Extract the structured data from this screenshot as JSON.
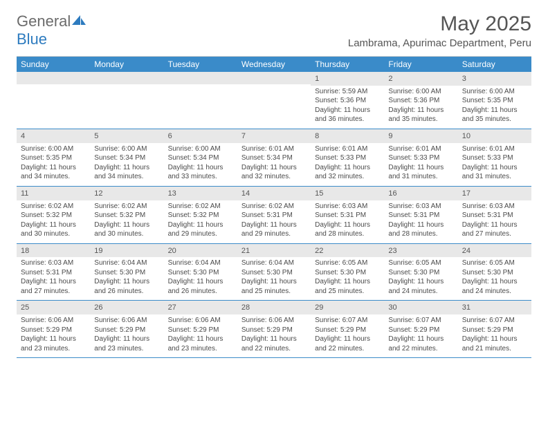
{
  "logo": {
    "text1": "General",
    "text2": "Blue"
  },
  "title": "May 2025",
  "location": "Lambrama, Apurimac Department, Peru",
  "colors": {
    "header_bg": "#3a8bc9",
    "header_text": "#ffffff",
    "daynum_bg": "#e8e8e8",
    "week_border": "#3a8bc9",
    "text": "#4a4a4a",
    "logo_gray": "#6b6b6b",
    "logo_blue": "#2d7bbf",
    "title_color": "#555555",
    "background": "#ffffff"
  },
  "fonts": {
    "family": "Arial, Helvetica, sans-serif",
    "title_size_pt": 22,
    "location_size_pt": 11,
    "dayheader_size_pt": 9,
    "cell_size_pt": 7.5
  },
  "day_labels": [
    "Sunday",
    "Monday",
    "Tuesday",
    "Wednesday",
    "Thursday",
    "Friday",
    "Saturday"
  ],
  "weeks": [
    [
      {
        "num": "",
        "sunrise": "",
        "sunset": "",
        "daylight": ""
      },
      {
        "num": "",
        "sunrise": "",
        "sunset": "",
        "daylight": ""
      },
      {
        "num": "",
        "sunrise": "",
        "sunset": "",
        "daylight": ""
      },
      {
        "num": "",
        "sunrise": "",
        "sunset": "",
        "daylight": ""
      },
      {
        "num": "1",
        "sunrise": "Sunrise: 5:59 AM",
        "sunset": "Sunset: 5:36 PM",
        "daylight": "Daylight: 11 hours and 36 minutes."
      },
      {
        "num": "2",
        "sunrise": "Sunrise: 6:00 AM",
        "sunset": "Sunset: 5:36 PM",
        "daylight": "Daylight: 11 hours and 35 minutes."
      },
      {
        "num": "3",
        "sunrise": "Sunrise: 6:00 AM",
        "sunset": "Sunset: 5:35 PM",
        "daylight": "Daylight: 11 hours and 35 minutes."
      }
    ],
    [
      {
        "num": "4",
        "sunrise": "Sunrise: 6:00 AM",
        "sunset": "Sunset: 5:35 PM",
        "daylight": "Daylight: 11 hours and 34 minutes."
      },
      {
        "num": "5",
        "sunrise": "Sunrise: 6:00 AM",
        "sunset": "Sunset: 5:34 PM",
        "daylight": "Daylight: 11 hours and 34 minutes."
      },
      {
        "num": "6",
        "sunrise": "Sunrise: 6:00 AM",
        "sunset": "Sunset: 5:34 PM",
        "daylight": "Daylight: 11 hours and 33 minutes."
      },
      {
        "num": "7",
        "sunrise": "Sunrise: 6:01 AM",
        "sunset": "Sunset: 5:34 PM",
        "daylight": "Daylight: 11 hours and 32 minutes."
      },
      {
        "num": "8",
        "sunrise": "Sunrise: 6:01 AM",
        "sunset": "Sunset: 5:33 PM",
        "daylight": "Daylight: 11 hours and 32 minutes."
      },
      {
        "num": "9",
        "sunrise": "Sunrise: 6:01 AM",
        "sunset": "Sunset: 5:33 PM",
        "daylight": "Daylight: 11 hours and 31 minutes."
      },
      {
        "num": "10",
        "sunrise": "Sunrise: 6:01 AM",
        "sunset": "Sunset: 5:33 PM",
        "daylight": "Daylight: 11 hours and 31 minutes."
      }
    ],
    [
      {
        "num": "11",
        "sunrise": "Sunrise: 6:02 AM",
        "sunset": "Sunset: 5:32 PM",
        "daylight": "Daylight: 11 hours and 30 minutes."
      },
      {
        "num": "12",
        "sunrise": "Sunrise: 6:02 AM",
        "sunset": "Sunset: 5:32 PM",
        "daylight": "Daylight: 11 hours and 30 minutes."
      },
      {
        "num": "13",
        "sunrise": "Sunrise: 6:02 AM",
        "sunset": "Sunset: 5:32 PM",
        "daylight": "Daylight: 11 hours and 29 minutes."
      },
      {
        "num": "14",
        "sunrise": "Sunrise: 6:02 AM",
        "sunset": "Sunset: 5:31 PM",
        "daylight": "Daylight: 11 hours and 29 minutes."
      },
      {
        "num": "15",
        "sunrise": "Sunrise: 6:03 AM",
        "sunset": "Sunset: 5:31 PM",
        "daylight": "Daylight: 11 hours and 28 minutes."
      },
      {
        "num": "16",
        "sunrise": "Sunrise: 6:03 AM",
        "sunset": "Sunset: 5:31 PM",
        "daylight": "Daylight: 11 hours and 28 minutes."
      },
      {
        "num": "17",
        "sunrise": "Sunrise: 6:03 AM",
        "sunset": "Sunset: 5:31 PM",
        "daylight": "Daylight: 11 hours and 27 minutes."
      }
    ],
    [
      {
        "num": "18",
        "sunrise": "Sunrise: 6:03 AM",
        "sunset": "Sunset: 5:31 PM",
        "daylight": "Daylight: 11 hours and 27 minutes."
      },
      {
        "num": "19",
        "sunrise": "Sunrise: 6:04 AM",
        "sunset": "Sunset: 5:30 PM",
        "daylight": "Daylight: 11 hours and 26 minutes."
      },
      {
        "num": "20",
        "sunrise": "Sunrise: 6:04 AM",
        "sunset": "Sunset: 5:30 PM",
        "daylight": "Daylight: 11 hours and 26 minutes."
      },
      {
        "num": "21",
        "sunrise": "Sunrise: 6:04 AM",
        "sunset": "Sunset: 5:30 PM",
        "daylight": "Daylight: 11 hours and 25 minutes."
      },
      {
        "num": "22",
        "sunrise": "Sunrise: 6:05 AM",
        "sunset": "Sunset: 5:30 PM",
        "daylight": "Daylight: 11 hours and 25 minutes."
      },
      {
        "num": "23",
        "sunrise": "Sunrise: 6:05 AM",
        "sunset": "Sunset: 5:30 PM",
        "daylight": "Daylight: 11 hours and 24 minutes."
      },
      {
        "num": "24",
        "sunrise": "Sunrise: 6:05 AM",
        "sunset": "Sunset: 5:30 PM",
        "daylight": "Daylight: 11 hours and 24 minutes."
      }
    ],
    [
      {
        "num": "25",
        "sunrise": "Sunrise: 6:06 AM",
        "sunset": "Sunset: 5:29 PM",
        "daylight": "Daylight: 11 hours and 23 minutes."
      },
      {
        "num": "26",
        "sunrise": "Sunrise: 6:06 AM",
        "sunset": "Sunset: 5:29 PM",
        "daylight": "Daylight: 11 hours and 23 minutes."
      },
      {
        "num": "27",
        "sunrise": "Sunrise: 6:06 AM",
        "sunset": "Sunset: 5:29 PM",
        "daylight": "Daylight: 11 hours and 23 minutes."
      },
      {
        "num": "28",
        "sunrise": "Sunrise: 6:06 AM",
        "sunset": "Sunset: 5:29 PM",
        "daylight": "Daylight: 11 hours and 22 minutes."
      },
      {
        "num": "29",
        "sunrise": "Sunrise: 6:07 AM",
        "sunset": "Sunset: 5:29 PM",
        "daylight": "Daylight: 11 hours and 22 minutes."
      },
      {
        "num": "30",
        "sunrise": "Sunrise: 6:07 AM",
        "sunset": "Sunset: 5:29 PM",
        "daylight": "Daylight: 11 hours and 22 minutes."
      },
      {
        "num": "31",
        "sunrise": "Sunrise: 6:07 AM",
        "sunset": "Sunset: 5:29 PM",
        "daylight": "Daylight: 11 hours and 21 minutes."
      }
    ]
  ]
}
